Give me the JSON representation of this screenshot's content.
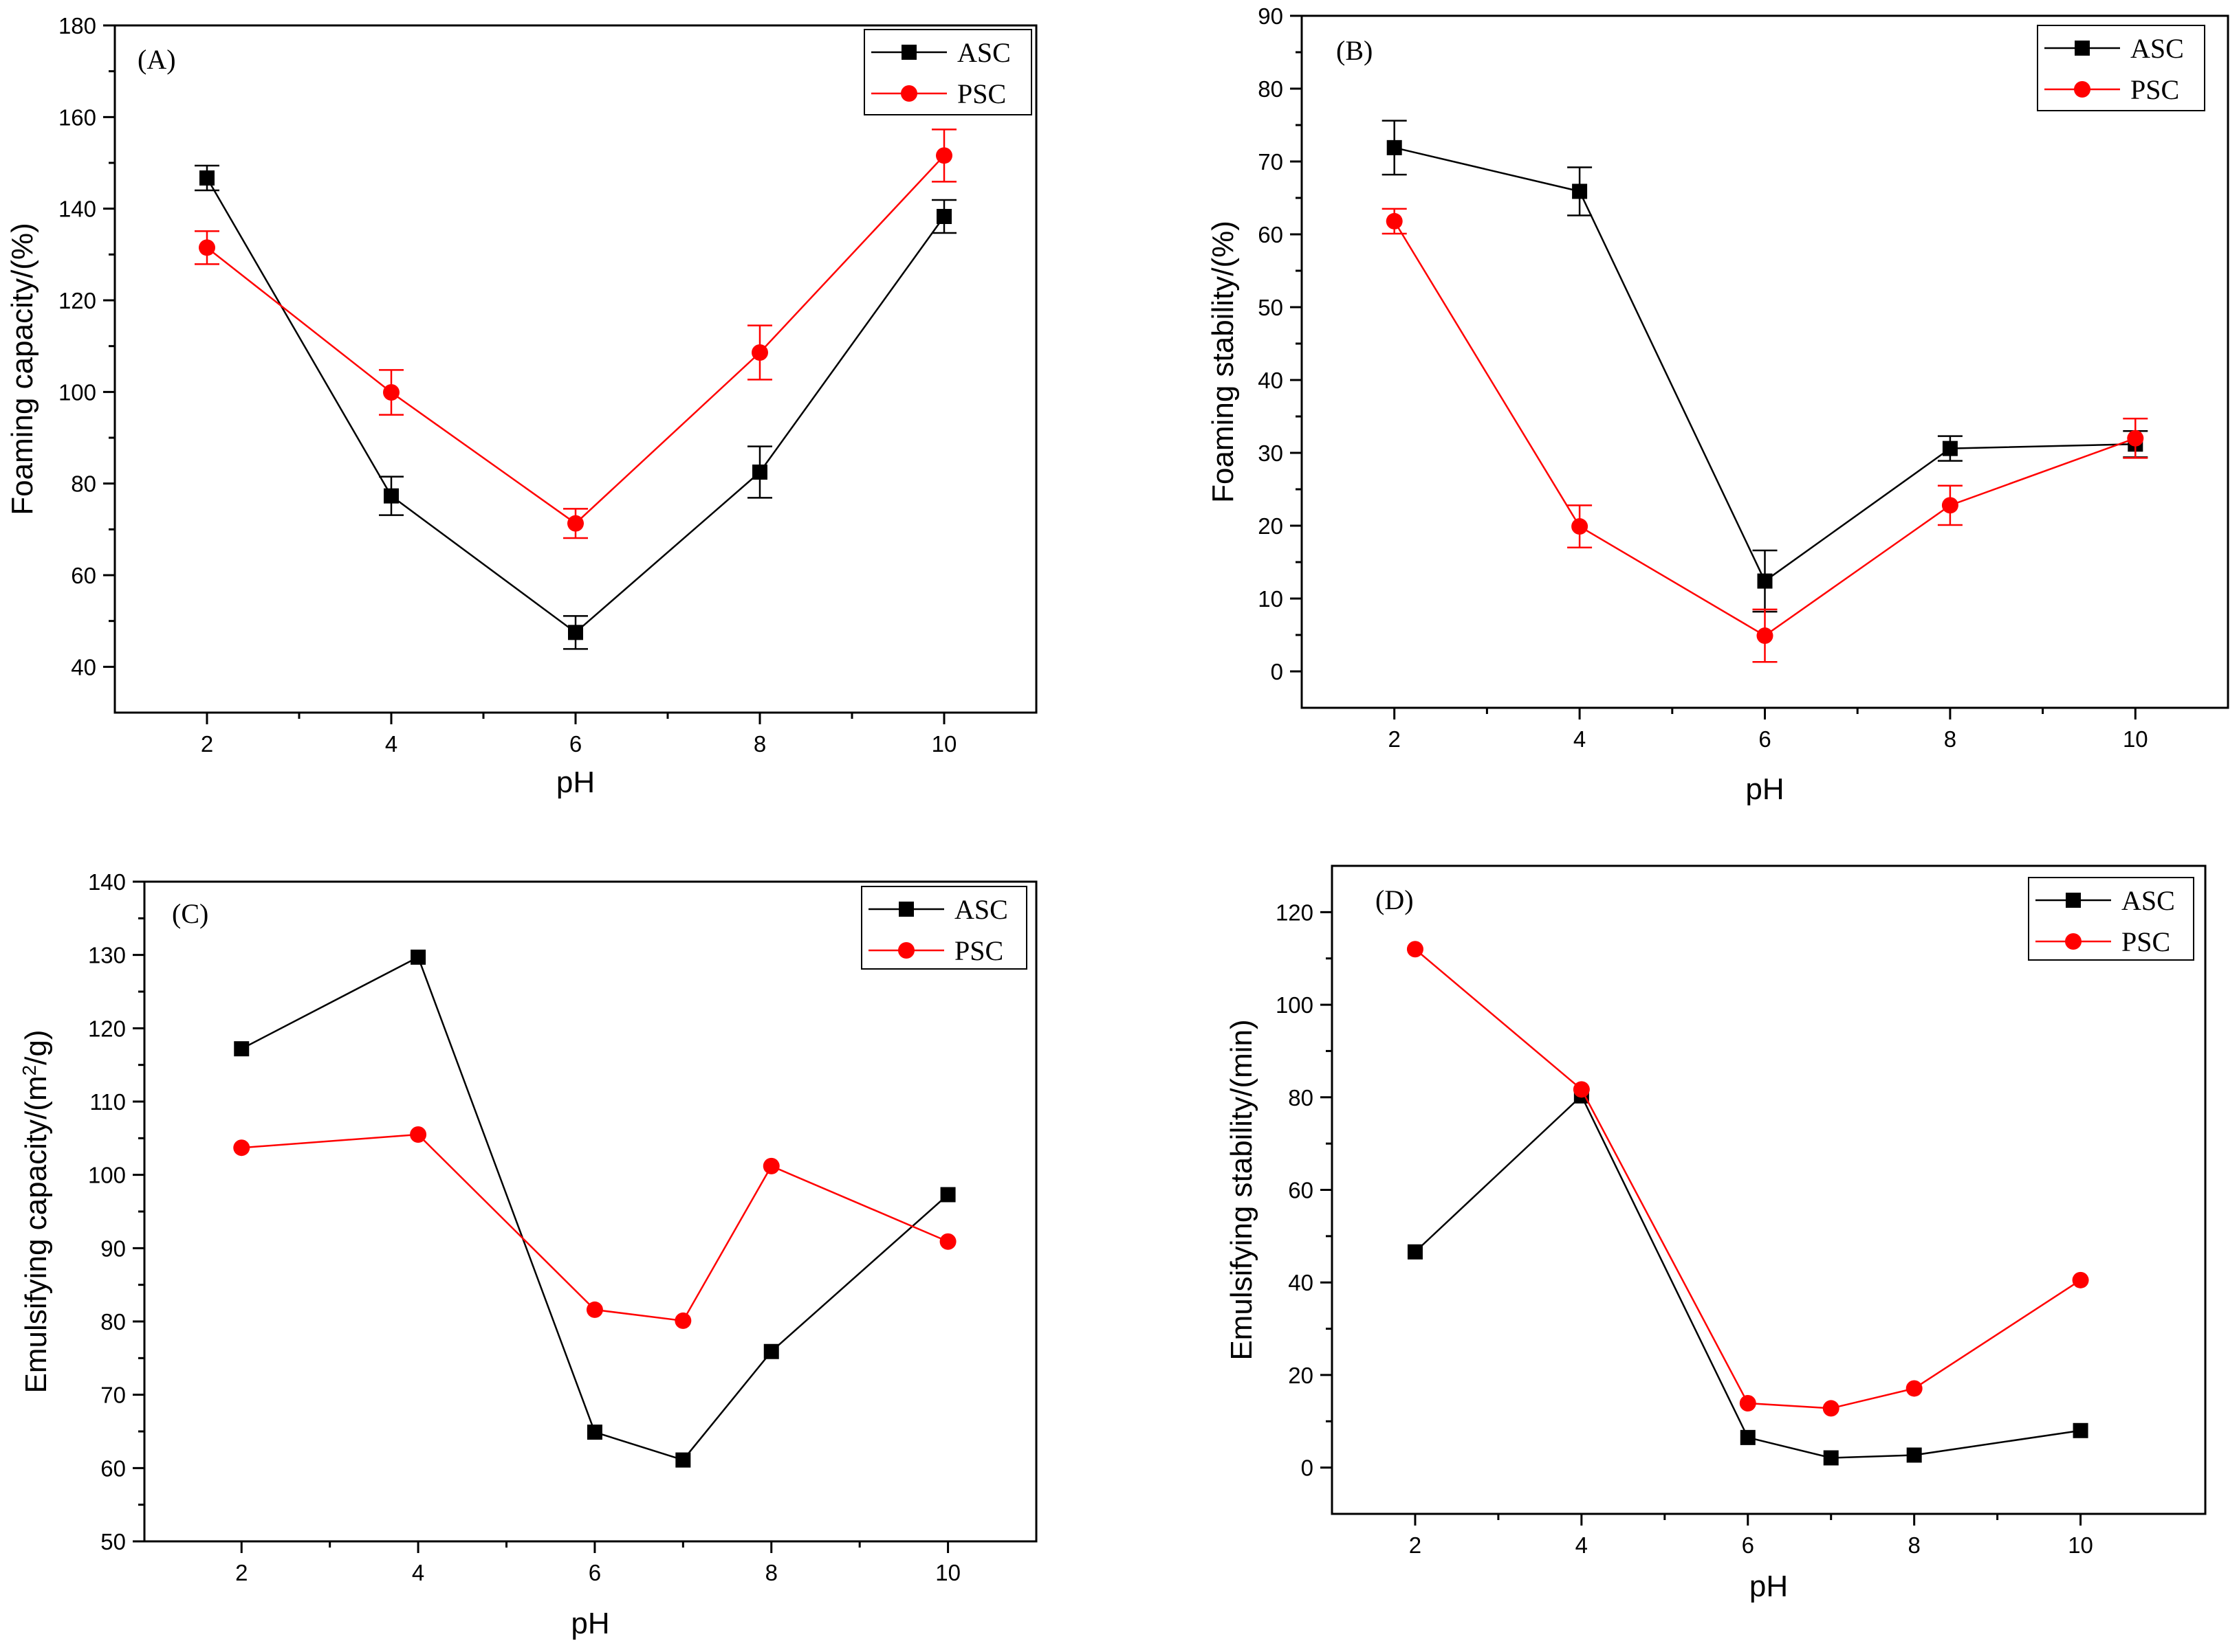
{
  "chart_data": [
    {
      "type": "line",
      "panel_label": "(A)",
      "xlabel": "pH",
      "ylabel": "Foaming capacity/(%)",
      "xlim": [
        1,
        11
      ],
      "ylim": [
        30,
        180
      ],
      "xticks": [
        2,
        4,
        6,
        8,
        10
      ],
      "yticks": [
        40,
        60,
        80,
        100,
        120,
        140,
        160,
        180
      ],
      "legend_position": "top-right",
      "error_bars": true,
      "x": [
        2,
        4,
        6,
        8,
        10
      ],
      "series": [
        {
          "name": "ASC",
          "color": "#000000",
          "marker": "square",
          "values": [
            146.7,
            77.3,
            47.5,
            82.5,
            138.3
          ],
          "errors": [
            2.7,
            4.2,
            3.6,
            5.6,
            3.6
          ]
        },
        {
          "name": "PSC",
          "color": "#ff0000",
          "marker": "circle",
          "values": [
            131.5,
            99.9,
            71.3,
            108.6,
            151.6
          ],
          "errors": [
            3.6,
            4.9,
            3.2,
            5.9,
            5.7
          ]
        }
      ]
    },
    {
      "type": "line",
      "panel_label": "(B)",
      "xlabel": "pH",
      "ylabel": "Foaming stability/(%)",
      "xlim": [
        1,
        11
      ],
      "ylim": [
        -5,
        90
      ],
      "xticks": [
        2,
        4,
        6,
        8,
        10
      ],
      "yticks": [
        0,
        10,
        20,
        30,
        40,
        50,
        60,
        70,
        80,
        90
      ],
      "legend_position": "top-right",
      "error_bars": true,
      "x": [
        2,
        4,
        6,
        8,
        10
      ],
      "series": [
        {
          "name": "ASC",
          "color": "#000000",
          "marker": "square",
          "values": [
            71.9,
            65.9,
            12.4,
            30.6,
            31.2
          ],
          "errors": [
            3.7,
            3.3,
            4.2,
            1.7,
            1.8
          ]
        },
        {
          "name": "PSC",
          "color": "#ff0000",
          "marker": "circle",
          "values": [
            61.8,
            19.9,
            4.9,
            22.8,
            32.0
          ],
          "errors": [
            1.7,
            2.9,
            3.6,
            2.7,
            2.7
          ]
        }
      ]
    },
    {
      "type": "line",
      "panel_label": "(C)",
      "xlabel": "pH",
      "ylabel_main": "Emulsifying capacity/(m",
      "ylabel_sup": "2",
      "ylabel_end": "/g)",
      "xlim": [
        0.9,
        11
      ],
      "ylim": [
        50,
        140
      ],
      "xticks": [
        2,
        4,
        6,
        8,
        10
      ],
      "yticks": [
        50,
        60,
        70,
        80,
        90,
        100,
        110,
        120,
        130,
        140
      ],
      "legend_position": "top-right",
      "error_bars": false,
      "series": [
        {
          "name": "ASC",
          "color": "#000000",
          "marker": "square",
          "x": [
            2,
            4,
            6,
            7,
            8,
            10
          ],
          "values": [
            117.2,
            129.7,
            64.9,
            61.1,
            75.9,
            97.3
          ]
        },
        {
          "name": "PSC",
          "color": "#ff0000",
          "marker": "circle",
          "x": [
            2,
            4,
            6,
            7,
            8,
            10
          ],
          "values": [
            103.7,
            105.5,
            81.6,
            80.1,
            101.2,
            90.9
          ]
        }
      ]
    },
    {
      "type": "line",
      "panel_label": "(D)",
      "xlabel": "pH",
      "ylabel": "Emulsifying stability/(min)",
      "xlim": [
        1,
        11.5
      ],
      "ylim": [
        -10,
        130
      ],
      "xticks": [
        2,
        4,
        6,
        8,
        10
      ],
      "yticks": [
        0,
        20,
        40,
        60,
        80,
        100,
        120
      ],
      "legend_position": "top-right",
      "error_bars": false,
      "series": [
        {
          "name": "ASC",
          "color": "#000000",
          "marker": "square",
          "x": [
            2,
            4,
            6,
            7,
            8,
            10
          ],
          "values": [
            46.6,
            80.3,
            6.5,
            2.1,
            2.7,
            8.0
          ]
        },
        {
          "name": "PSC",
          "color": "#ff0000",
          "marker": "circle",
          "x": [
            2,
            4,
            6,
            7,
            8,
            10
          ],
          "values": [
            112.0,
            81.7,
            13.9,
            12.8,
            17.1,
            40.5
          ]
        }
      ]
    }
  ]
}
